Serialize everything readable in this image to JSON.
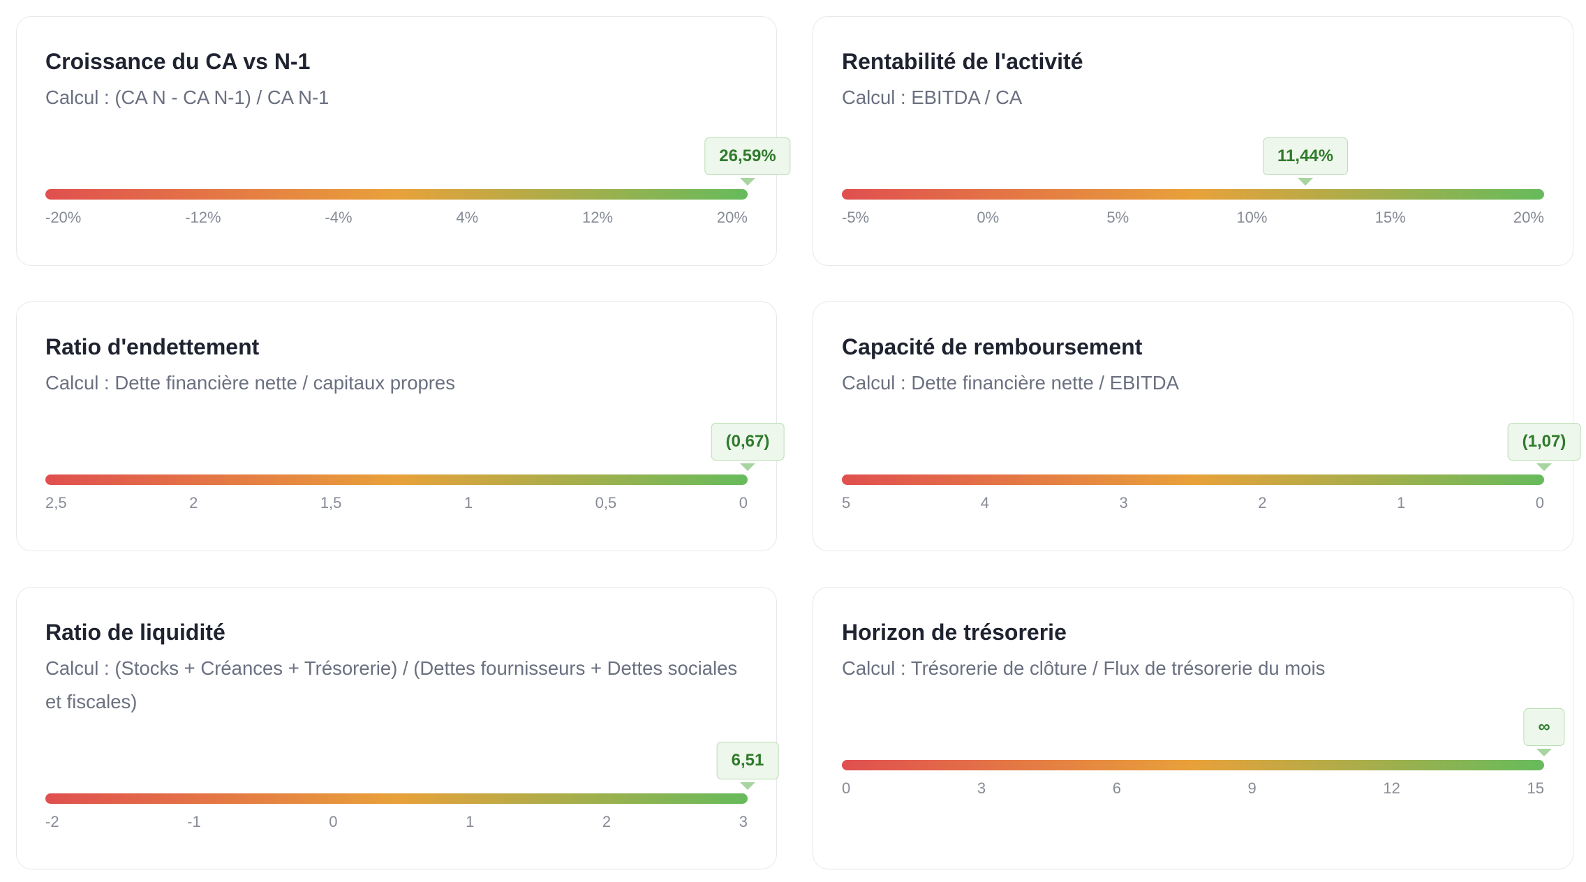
{
  "cards": [
    {
      "title": "Croissance du CA vs N-1",
      "formula": "Calcul : (CA N - CA N-1) / CA N-1",
      "value": "26,59%",
      "ticks": [
        "-20%",
        "-12%",
        "-4%",
        "4%",
        "12%",
        "20%"
      ]
    },
    {
      "title": "Rentabilité de l'activité",
      "formula": "Calcul : EBITDA / CA",
      "value": "11,44%",
      "ticks": [
        "-5%",
        "0%",
        "5%",
        "10%",
        "15%",
        "20%"
      ]
    },
    {
      "title": "Ratio d'endettement",
      "formula": "Calcul : Dette financière nette / capitaux propres",
      "value": "(0,67)",
      "ticks": [
        "2,5",
        "2",
        "1,5",
        "1",
        "0,5",
        "0"
      ]
    },
    {
      "title": "Capacité de remboursement",
      "formula": "Calcul : Dette financière nette / EBITDA",
      "value": "(1,07)",
      "ticks": [
        "5",
        "4",
        "3",
        "2",
        "1",
        "0"
      ]
    },
    {
      "title": "Ratio de liquidité",
      "formula": "Calcul : (Stocks + Créances + Trésorerie) / (Dettes fournisseurs + Dettes sociales et fiscales)",
      "value": "6,51",
      "ticks": [
        "-2",
        "-1",
        "0",
        "1",
        "2",
        "3"
      ]
    },
    {
      "title": "Horizon de trésorerie",
      "formula": "Calcul : Trésorerie de clôture / Flux de trésorerie du mois",
      "value": "∞",
      "ticks": [
        "0",
        "3",
        "6",
        "9",
        "12",
        "15"
      ]
    }
  ]
}
